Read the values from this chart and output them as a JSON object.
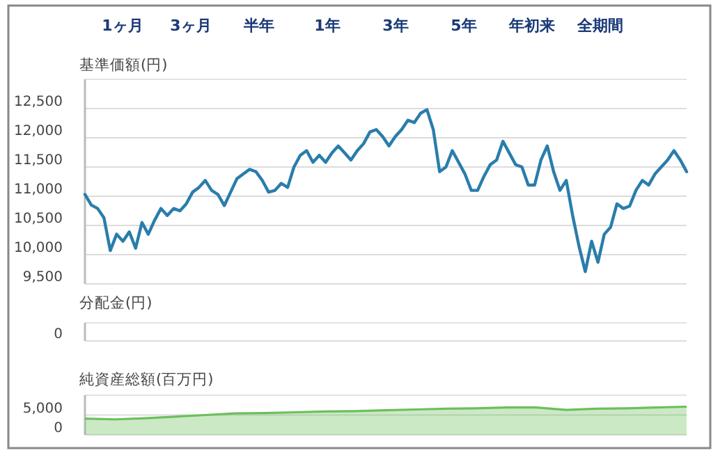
{
  "chart_data": [
    {
      "type": "other",
      "annotations": [
        "1ヶ月",
        "3ヶ月",
        "半年",
        "1年",
        "3年",
        "5年",
        "年初来",
        "全期間"
      ]
    },
    {
      "type": "line",
      "title": "基準価額(円)",
      "categories": [
        null,
        null,
        null,
        null,
        null,
        null,
        null,
        null,
        null,
        null,
        null,
        null,
        null,
        null,
        null,
        null,
        null,
        null,
        null,
        null,
        null,
        null,
        null,
        null,
        null,
        null,
        null,
        null,
        null,
        null,
        null,
        null,
        null,
        null,
        null,
        null,
        null,
        null,
        null,
        null,
        null,
        null,
        null,
        null,
        null,
        null,
        null,
        null,
        null,
        null,
        null,
        null,
        null,
        null,
        null,
        null,
        null,
        null,
        null,
        null,
        null,
        null,
        null,
        null,
        null,
        null,
        null,
        null,
        null,
        null,
        null,
        null,
        null,
        null,
        null,
        null,
        null,
        null,
        null,
        null,
        null,
        null,
        null,
        null,
        null,
        null,
        null,
        null,
        null,
        null,
        null,
        null,
        null,
        null,
        null,
        null
      ],
      "series": [
        {
          "color": "#2a7dab",
          "values": [
            11030,
            10850,
            10790,
            10630,
            10070,
            10350,
            10230,
            10390,
            10110,
            10550,
            10350,
            10590,
            10790,
            10670,
            10790,
            10750,
            10870,
            11070,
            11150,
            11270,
            11100,
            11030,
            10840,
            11070,
            11300,
            11380,
            11460,
            11420,
            11270,
            11070,
            11100,
            11220,
            11150,
            11500,
            11700,
            11780,
            11580,
            11700,
            11580,
            11740,
            11860,
            11740,
            11620,
            11780,
            11900,
            12100,
            12140,
            12020,
            11860,
            12020,
            12140,
            12300,
            12260,
            12420,
            12480,
            12140,
            11420,
            11500,
            11780,
            11580,
            11380,
            11100,
            11100,
            11340,
            11540,
            11620,
            11940,
            11740,
            11540,
            11500,
            11190,
            11190,
            11620,
            11860,
            11420,
            11100,
            11270,
            10670,
            10150,
            9710,
            10230,
            9870,
            10350,
            10470,
            10870,
            10790,
            10830,
            11100,
            11270,
            11190,
            11380,
            11500,
            11620,
            11780,
            11620,
            11420
          ]
        }
      ],
      "ylim": [
        9500,
        13000
      ],
      "yticks": [
        {
          "value": 9500,
          "label": "9,500"
        },
        {
          "value": 10000,
          "label": "10,000"
        },
        {
          "value": 10500,
          "label": "10,500"
        },
        {
          "value": 11000,
          "label": "11,000"
        },
        {
          "value": 11500,
          "label": "11,500"
        },
        {
          "value": 12000,
          "label": "12,000"
        },
        {
          "value": 12500,
          "label": "12,500"
        }
      ],
      "grid": "y"
    },
    {
      "type": "other",
      "title": "分配金(円)",
      "annotations": [
        "0"
      ]
    },
    {
      "type": "area",
      "title": "純資産総額(百万円)",
      "categories": [
        null,
        null,
        null,
        null,
        null,
        null,
        null,
        null,
        null,
        null,
        null,
        null,
        null,
        null,
        null,
        null,
        null,
        null,
        null,
        null,
        null
      ],
      "series": [
        {
          "color": "#6cbf5c",
          "values": [
            4100,
            3900,
            4200,
            4600,
            5000,
            5400,
            5500,
            5700,
            5900,
            6000,
            6200,
            6400,
            6600,
            6700,
            6900,
            6900,
            6300,
            6600,
            6700,
            6900,
            7100
          ]
        }
      ],
      "ylim": [
        0,
        10000
      ],
      "yticks": [
        0,
        {
          "value": 5000,
          "label": "5,000"
        }
      ],
      "grid": "y"
    }
  ]
}
